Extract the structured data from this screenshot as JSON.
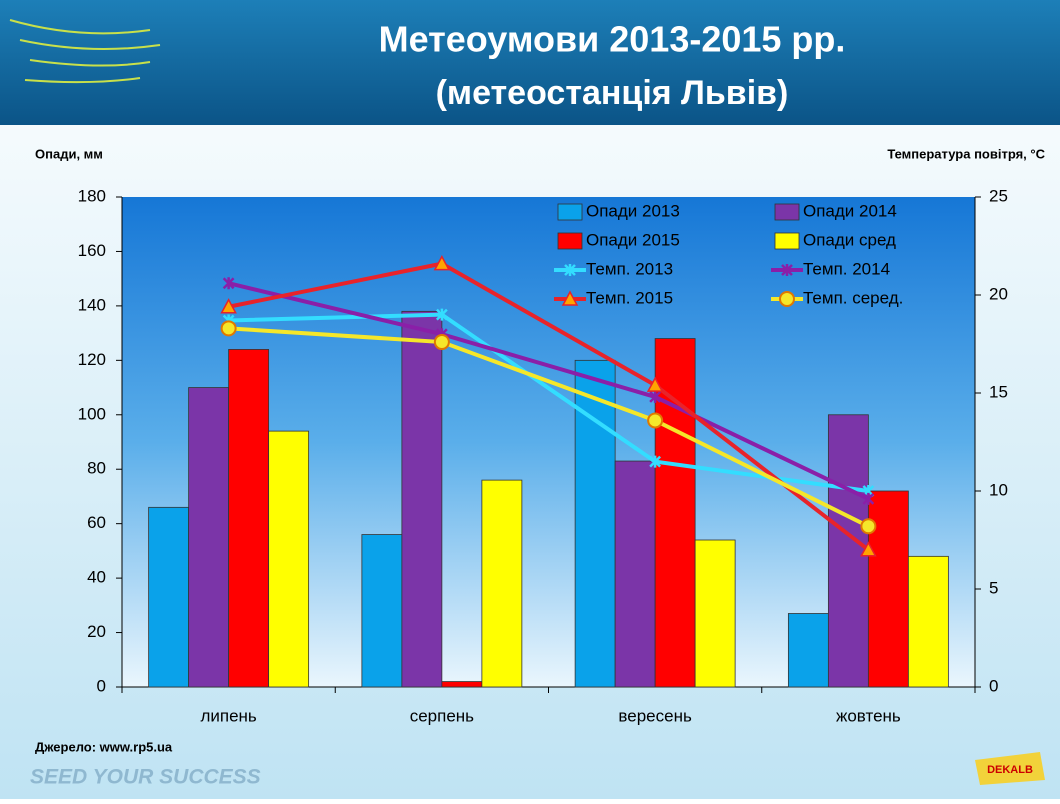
{
  "title": "Метеоумови 2013-2015 рр.",
  "subtitle": "(метеостанція Львів)",
  "source": "Джерело: www.rp5.ua",
  "slogan": "SEED YOUR SUCCESS",
  "logo": "DEKALB",
  "chart_data": {
    "type": "bar",
    "y_label": "Опади, мм",
    "y2_label": "Температура повітря, °С",
    "categories": [
      "липень",
      "серпень",
      "вересень",
      "жовтень"
    ],
    "series": [
      {
        "name": "Опади 2013",
        "type": "bar",
        "color": "#0aa2ea",
        "values": [
          66,
          56,
          120,
          27
        ]
      },
      {
        "name": "Опади 2014",
        "type": "bar",
        "color": "#7b35a8",
        "values": [
          110,
          138,
          83,
          100
        ]
      },
      {
        "name": "Опади 2015",
        "type": "bar",
        "color": "#ff0000",
        "values": [
          124,
          2,
          128,
          72
        ]
      },
      {
        "name": "Опади сред",
        "type": "bar",
        "color": "#ffff00",
        "values": [
          94,
          76,
          54,
          48
        ]
      },
      {
        "name": "Темп. 2013",
        "type": "line",
        "axis": "y2",
        "color": "#33ddff",
        "marker": "x",
        "values": [
          18.7,
          19.0,
          11.5,
          10.0
        ]
      },
      {
        "name": "Темп. 2014",
        "type": "line",
        "axis": "y2",
        "color": "#8a1fa8",
        "marker": "x",
        "values": [
          20.6,
          18.0,
          14.8,
          9.6
        ]
      },
      {
        "name": "Темп. 2015",
        "type": "line",
        "axis": "y2",
        "color": "#e8232a",
        "marker": "triangle",
        "values": [
          19.4,
          21.6,
          15.4,
          7.0
        ]
      },
      {
        "name": "Темп. серед.",
        "type": "line",
        "axis": "y2",
        "color": "#f5e72a",
        "marker": "circle",
        "values": [
          18.3,
          17.6,
          13.6,
          8.2
        ]
      }
    ],
    "ylim": [
      0,
      180
    ],
    "yticks": [
      0,
      20,
      40,
      60,
      80,
      100,
      120,
      140,
      160,
      180
    ],
    "y2lim": [
      0,
      25
    ],
    "y2ticks": [
      0,
      5,
      10,
      15,
      20,
      25
    ],
    "legend": "top-right"
  }
}
